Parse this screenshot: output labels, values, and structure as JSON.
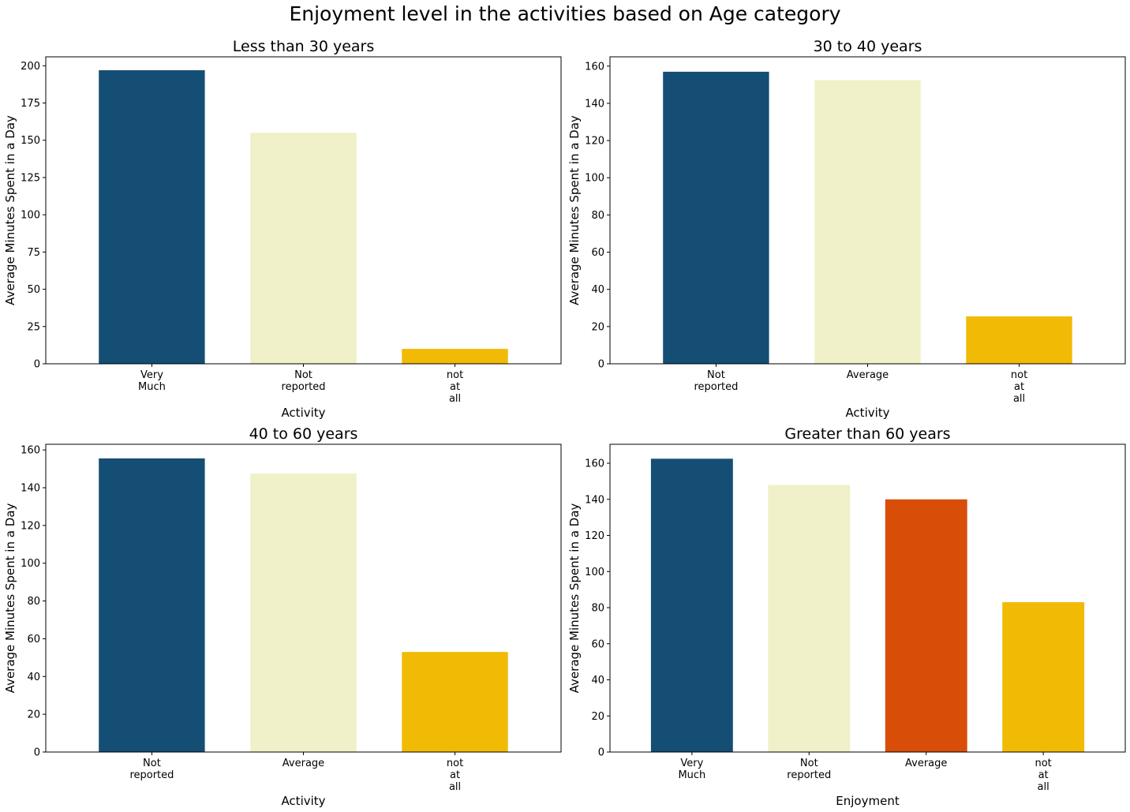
{
  "figure": {
    "suptitle": "Enjoyment level in the activities based on Age category"
  },
  "colors": {
    "very_much": "#154e75",
    "not_reported": "#f0f0c9",
    "average_light": "#f0f0c9",
    "average_orange": "#d84e09",
    "not_at_all": "#f1ba05"
  },
  "chart_data": [
    {
      "type": "bar",
      "title": "Less than 30 years",
      "xlabel": "Activity",
      "ylabel": "Average Minutes Spent in a Day",
      "categories": [
        "Very\nMuch",
        "Not\nreported",
        "not\nat\nall"
      ],
      "values": [
        197,
        155,
        10
      ],
      "colors": [
        "#154e75",
        "#f0f0c9",
        "#f1ba05"
      ],
      "ylim": [
        0,
        206
      ],
      "yticks": [
        0,
        25,
        50,
        75,
        100,
        125,
        150,
        175,
        200
      ],
      "grid": false
    },
    {
      "type": "bar",
      "title": "30 to 40 years",
      "xlabel": "Activity",
      "ylabel": "Average Minutes Spent in a Day",
      "categories": [
        "Not\nreported",
        "Average",
        "not\nat\nall"
      ],
      "values": [
        157,
        152.5,
        25.5
      ],
      "colors": [
        "#154e75",
        "#f0f0c9",
        "#f1ba05"
      ],
      "ylim": [
        0,
        165
      ],
      "yticks": [
        0,
        20,
        40,
        60,
        80,
        100,
        120,
        140,
        160
      ],
      "grid": false
    },
    {
      "type": "bar",
      "title": "40 to 60 years",
      "xlabel": "Activity",
      "ylabel": "Average Minutes Spent in a Day",
      "categories": [
        "Not\nreported",
        "Average",
        "not\nat\nall"
      ],
      "values": [
        155.5,
        147.5,
        53
      ],
      "colors": [
        "#154e75",
        "#f0f0c9",
        "#f1ba05"
      ],
      "ylim": [
        0,
        163
      ],
      "yticks": [
        0,
        20,
        40,
        60,
        80,
        100,
        120,
        140,
        160
      ],
      "grid": false
    },
    {
      "type": "bar",
      "title": "Greater than 60 years",
      "xlabel": "Enjoyment",
      "ylabel": "Average Minutes Spent in a Day",
      "categories": [
        "Very\nMuch",
        "Not\nreported",
        "Average",
        "not\nat\nall"
      ],
      "values": [
        162.5,
        148,
        140,
        83
      ],
      "colors": [
        "#154e75",
        "#f0f0c9",
        "#d84e09",
        "#f1ba05"
      ],
      "ylim": [
        0,
        170.5
      ],
      "yticks": [
        0,
        20,
        40,
        60,
        80,
        100,
        120,
        140,
        160
      ],
      "grid": false
    }
  ]
}
